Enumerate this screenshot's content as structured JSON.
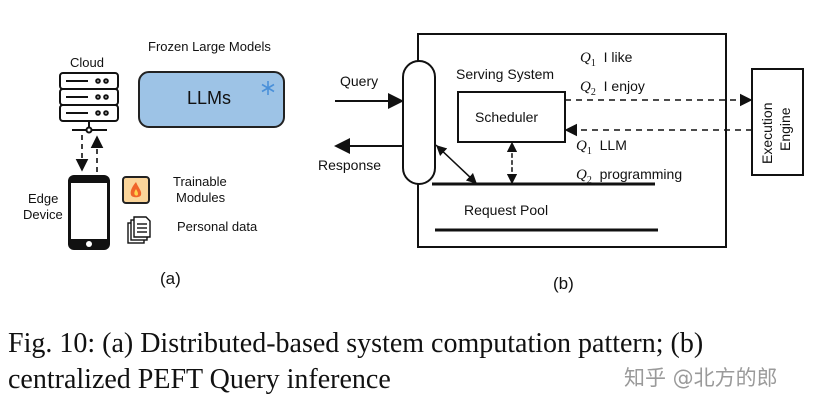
{
  "panel_a": {
    "cloud_label": "Cloud",
    "frozen_label": "Frozen Large Models",
    "llm_label": "LLMs",
    "edge_label_1": "Edge",
    "edge_label_2": "Device",
    "trainable_label_1": "Trainable",
    "trainable_label_2": "Modules",
    "personal_label": "Personal data",
    "sublabel": "(a)",
    "icons": [
      "server-icon",
      "snowflake-icon",
      "smartphone-icon",
      "fire-icon",
      "documents-icon"
    ],
    "colors": {
      "llm_fill": "#9dc3e6",
      "fire_fill": "#fbd59a"
    }
  },
  "panel_b": {
    "query_label": "Query",
    "response_label": "Response",
    "serving_label": "Serving System",
    "scheduler_label": "Scheduler",
    "request_pool_label": "Request Pool",
    "engine_label_1": "Execution",
    "engine_label_2": "Engine",
    "outgoing": [
      {
        "q": "Q",
        "sub": "1",
        "text": "I like"
      },
      {
        "q": "Q",
        "sub": "2",
        "text": "I enjoy"
      }
    ],
    "incoming": [
      {
        "q": "Q",
        "sub": "1",
        "text": "LLM"
      },
      {
        "q": "Q",
        "sub": "2",
        "text": "programming"
      }
    ],
    "sublabel": "(b)"
  },
  "caption": {
    "line1": "Fig. 10: (a) Distributed-based system computation pattern; (b)",
    "line2": "centralized PEFT Query inference"
  },
  "watermark": "知乎 @北方的郎"
}
